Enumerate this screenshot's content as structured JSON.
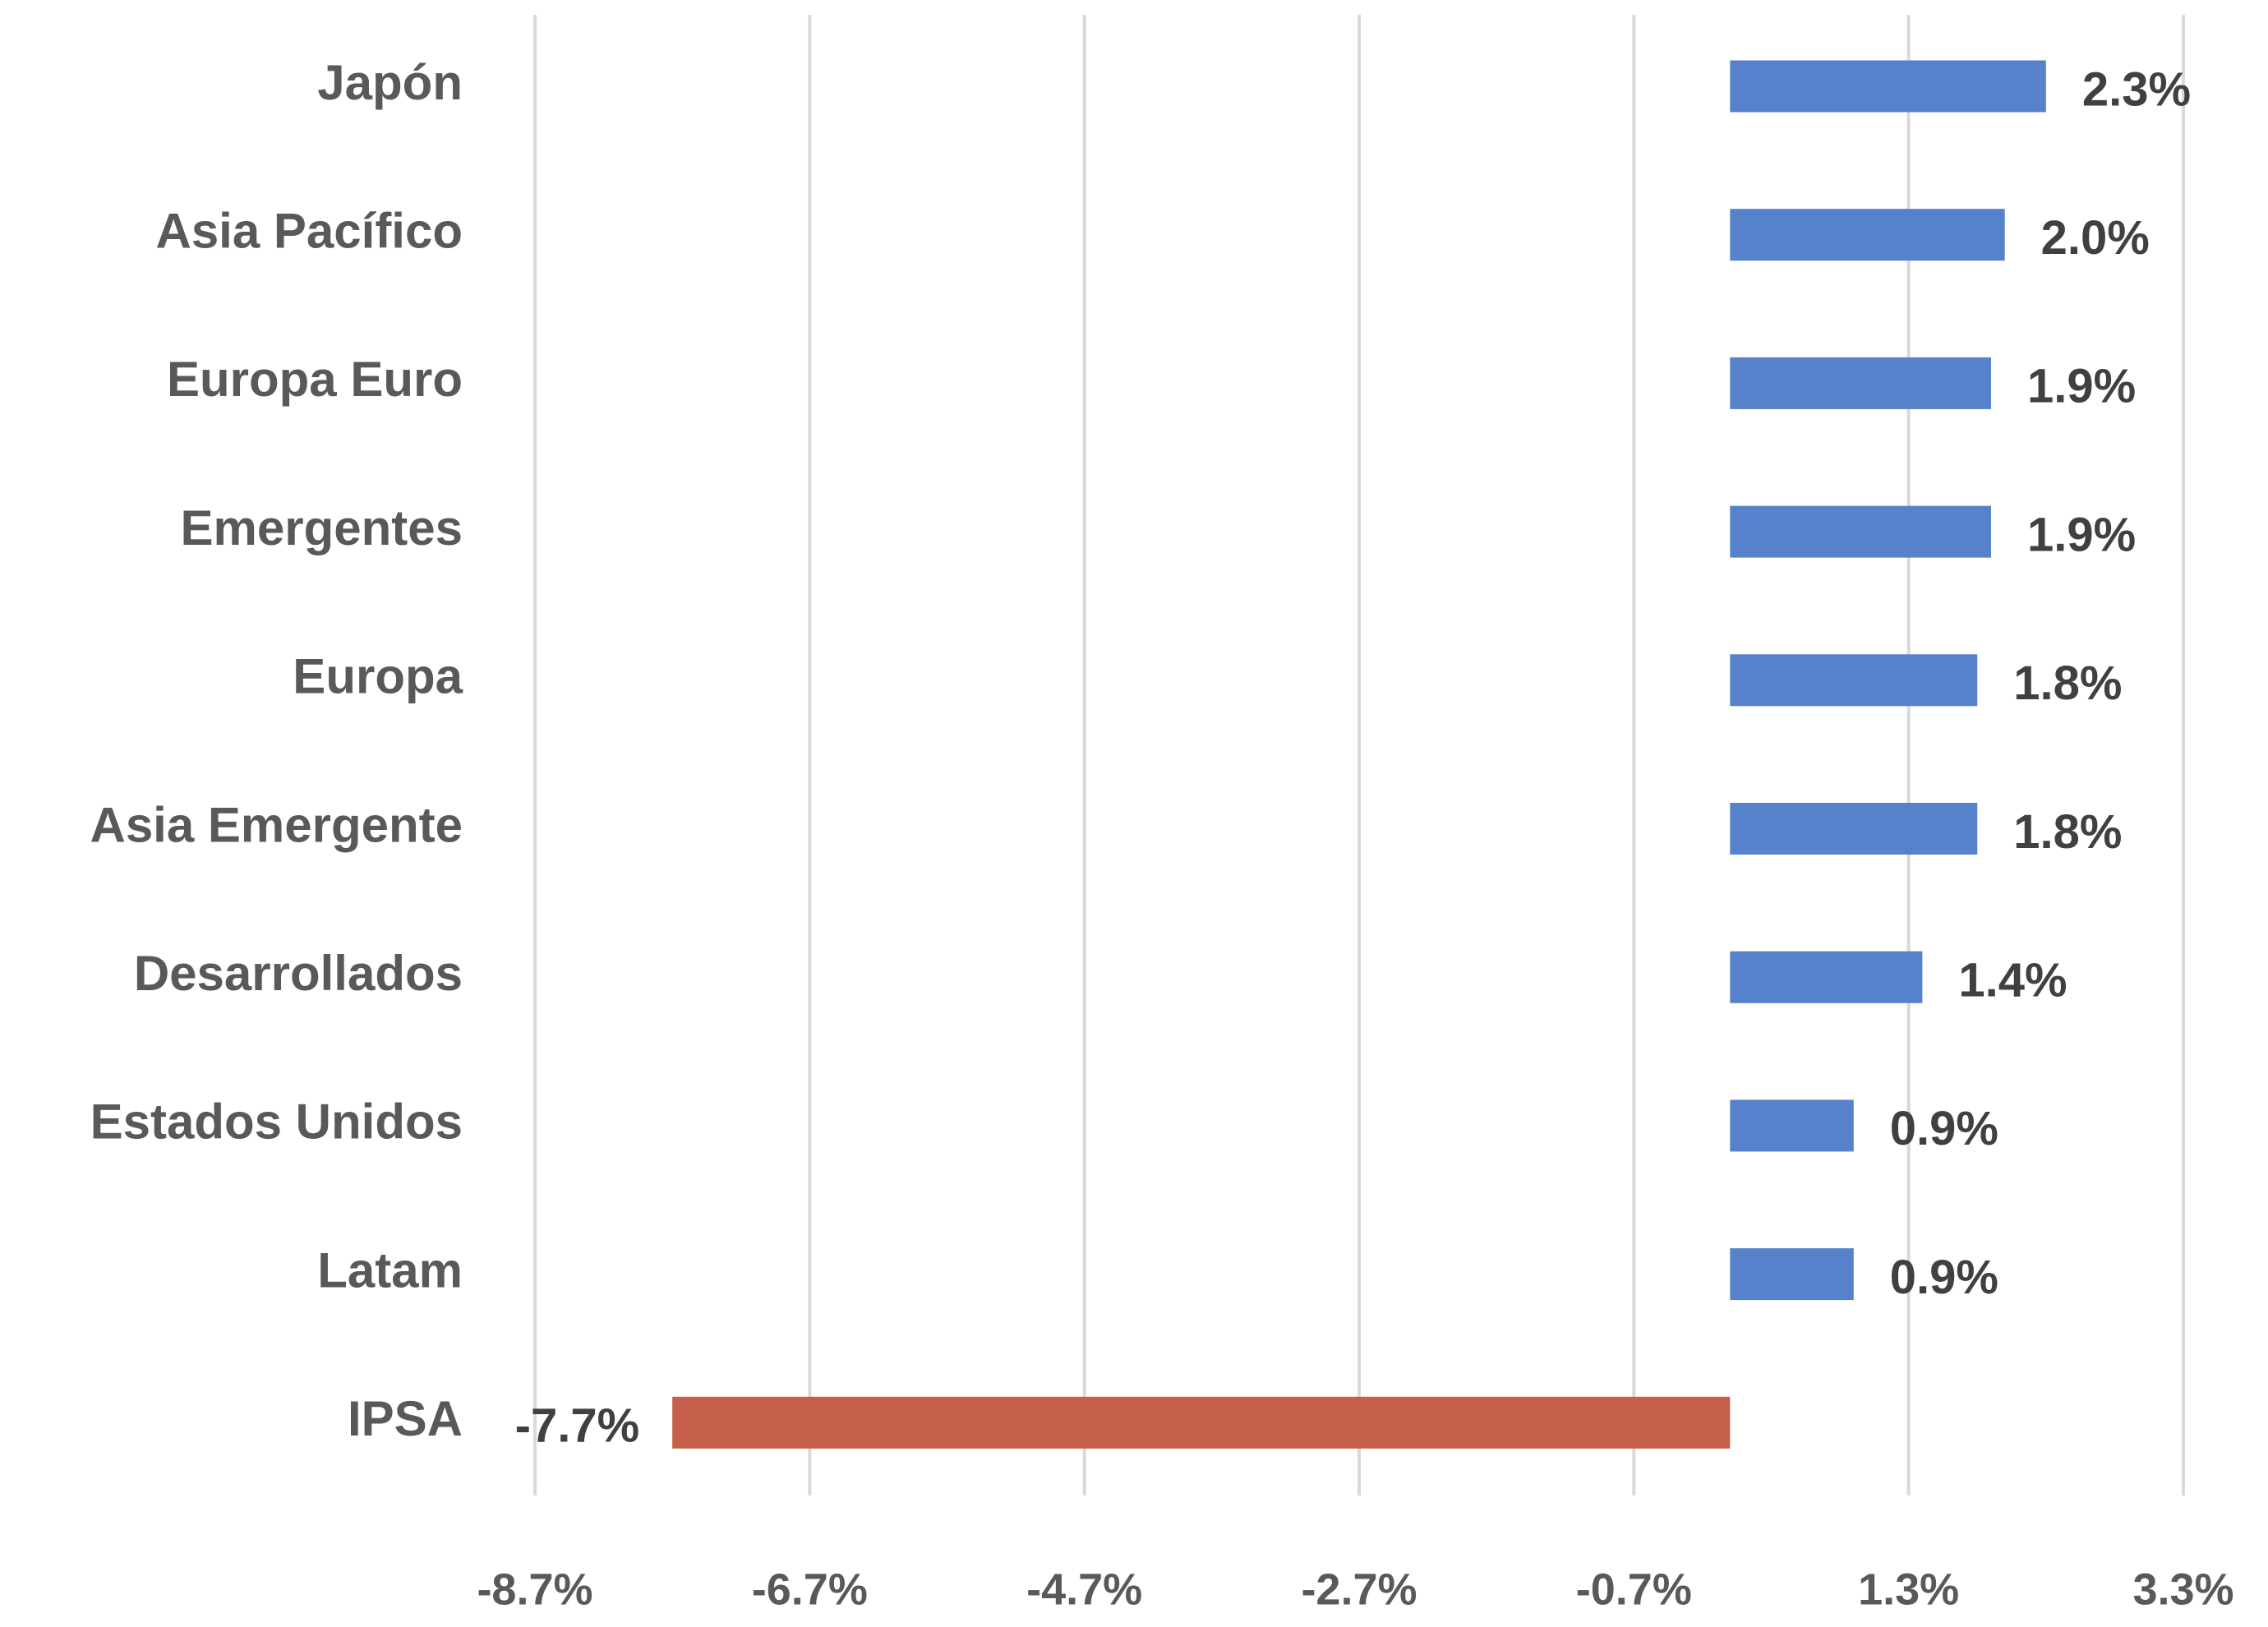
{
  "chart_data": {
    "type": "hbar",
    "categories": [
      "Japón",
      "Asia Pacífico",
      "Europa Euro",
      "Emergentes",
      "Europa",
      "Asia Emergente",
      "Desarrollados",
      "Estados Unidos",
      "Latam",
      "IPSA"
    ],
    "values": [
      2.3,
      2.0,
      1.9,
      1.9,
      1.8,
      1.8,
      1.4,
      0.9,
      0.9,
      -7.7
    ],
    "value_labels": [
      "2.3%",
      "2.0%",
      "1.9%",
      "1.9%",
      "1.8%",
      "1.8%",
      "1.4%",
      "0.9%",
      "0.9%",
      "-7.7%"
    ],
    "colors": [
      "#5681cb",
      "#5681cb",
      "#5681cb",
      "#5681cb",
      "#5681cb",
      "#5681cb",
      "#5681cb",
      "#5681cb",
      "#5681cb",
      "#c65f49"
    ],
    "xlim": [
      -8.7,
      3.3
    ],
    "xticks": [
      {
        "value": -8.7,
        "label": "-8.7%"
      },
      {
        "value": -6.7,
        "label": "-6.7%"
      },
      {
        "value": -4.7,
        "label": "-4.7%"
      },
      {
        "value": -2.7,
        "label": "-2.7%"
      },
      {
        "value": -0.7,
        "label": "-0.7%"
      },
      {
        "value": 1.3,
        "label": "1.3%"
      },
      {
        "value": 3.3,
        "label": "3.3%"
      }
    ],
    "grid": true
  }
}
